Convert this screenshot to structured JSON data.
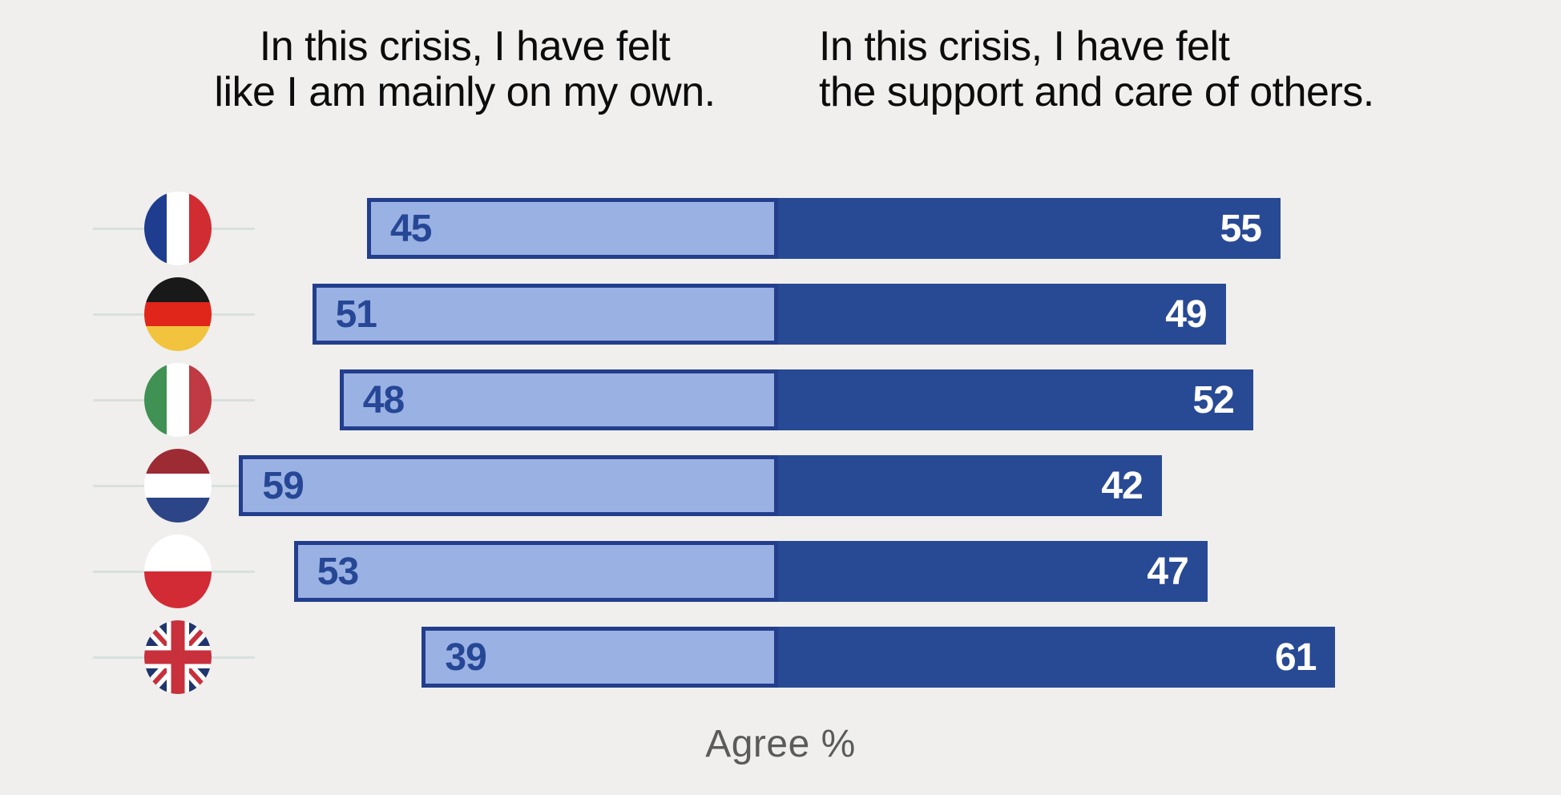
{
  "titles": {
    "left": {
      "line1": "In this crisis, I have felt",
      "line2": "like I am mainly on my own."
    },
    "right": {
      "line1": "In this crisis, I have felt",
      "line2": "the support and care of others."
    }
  },
  "axis_label": "Agree %",
  "chart_data": {
    "type": "bar",
    "orientation": "horizontal-paired",
    "categories": [
      "France",
      "Germany",
      "Italy",
      "Netherlands",
      "Poland",
      "United Kingdom"
    ],
    "series": [
      {
        "name": "In this crisis, I have felt like I am mainly on my own.",
        "values": [
          45,
          51,
          48,
          59,
          53,
          39
        ]
      },
      {
        "name": "In this crisis, I have felt the support and care of others.",
        "values": [
          55,
          49,
          52,
          42,
          47,
          61
        ]
      }
    ],
    "value_unit": "Agree %",
    "xlim": [
      0,
      100
    ],
    "grid": false,
    "legend_position": "top-as-column-headers"
  },
  "colors": {
    "background": "#f0efed",
    "bar_light": "#9ab1e3",
    "bar_dark": "#284a94",
    "bar_border": "#223e8c",
    "value_text_light_bar": "#254795",
    "value_text_dark_bar": "#ffffff",
    "title_text": "#0c0c0c",
    "axis_label_text": "#5b5b5b",
    "flag_line": "#d7e1de"
  },
  "flags": [
    {
      "country": "France",
      "icon": "france-flag-icon",
      "layout": "vertical",
      "stripes": [
        "#1e3d8f",
        "#ffffff",
        "#d02c32"
      ]
    },
    {
      "country": "Germany",
      "icon": "germany-flag-icon",
      "layout": "horizontal",
      "stripes": [
        "#191919",
        "#e0261b",
        "#f2c33d"
      ]
    },
    {
      "country": "Italy",
      "icon": "italy-flag-icon",
      "layout": "vertical",
      "stripes": [
        "#3f9154",
        "#ffffff",
        "#bf3a42"
      ]
    },
    {
      "country": "Netherlands",
      "icon": "netherlands-flag-icon",
      "layout": "horizontal",
      "stripes": [
        "#9c2b33",
        "#ffffff",
        "#2c4587"
      ]
    },
    {
      "country": "Poland",
      "icon": "poland-flag-icon",
      "layout": "horizontal",
      "stripes": [
        "#ffffff",
        "#d22b35"
      ]
    },
    {
      "country": "United Kingdom",
      "icon": "uk-flag-icon",
      "layout": "union-jack",
      "stripes": [
        "#20356f",
        "#ffffff",
        "#c8303c"
      ]
    }
  ]
}
